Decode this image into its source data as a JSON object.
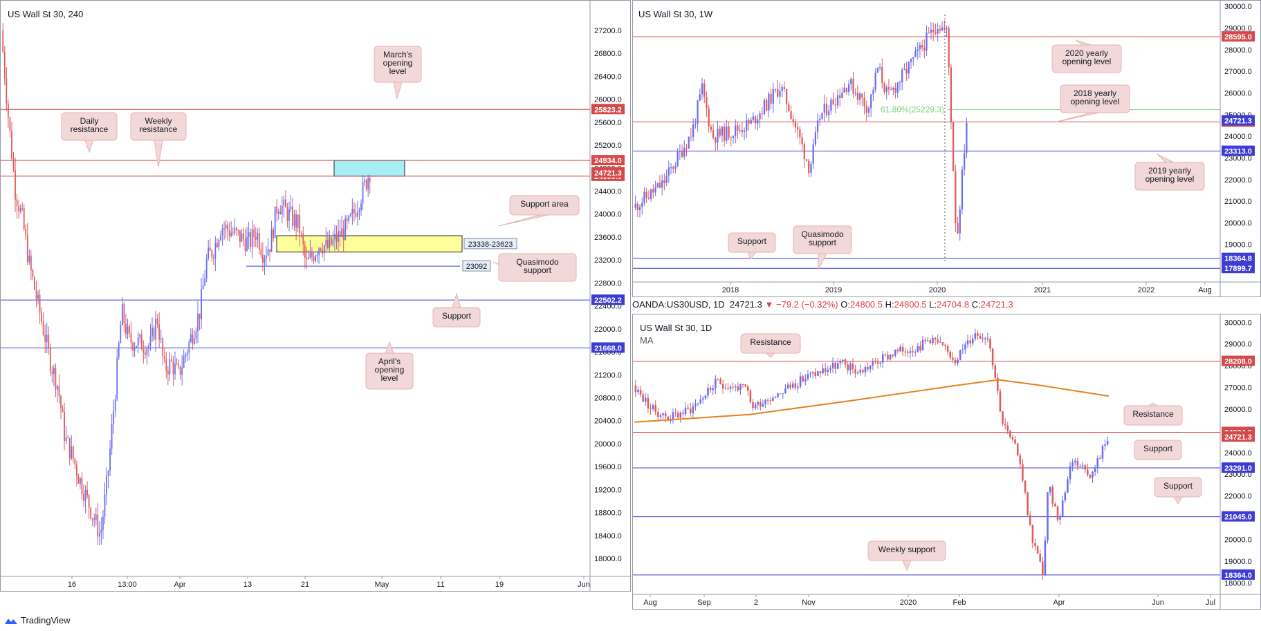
{
  "brand": "TradingView",
  "infobar": {
    "symbol": "OANDA:US30USD, 1D",
    "last": "24721.3",
    "arrow": "▼",
    "change": "−79.2 (−0.32%)",
    "o_label": "O:",
    "o": "24800.5",
    "h_label": "H:",
    "h": "24800.5",
    "l_label": "L:",
    "l": "24704.8",
    "c_label": "C:",
    "c": "24721.3"
  },
  "colors": {
    "bull": "#6b6bf0",
    "bear": "#e05a5a",
    "resistance": "#d44a4a",
    "support": "#3d3dd6",
    "ma": "#e8811a",
    "fib": "#7fd37f",
    "callout": "#f2d8d8"
  },
  "chart_data": [
    {
      "id": "h4",
      "type": "candlestick",
      "title": "US Wall St 30, 240",
      "ylim": [
        17700,
        27500
      ],
      "y_ticks": [
        "27200.0",
        "26800.0",
        "26400.0",
        "26000.0",
        "25600.0",
        "25200.0",
        "24800.0",
        "24400.0",
        "24000.0",
        "23600.0",
        "23200.0",
        "22800.0",
        "22400.0",
        "22000.0",
        "21600.0",
        "21200.0",
        "20800.0",
        "20400.0",
        "20000.0",
        "19600.0",
        "19200.0",
        "18800.0",
        "18400.0",
        "18000.0"
      ],
      "x_ticks": [
        "16",
        "13:00",
        "Apr",
        "13",
        "21",
        "May",
        "11",
        "19",
        "Jun"
      ],
      "price_path": [
        [
          "Mar 9",
          27200
        ],
        [
          "Mar 10",
          25700
        ],
        [
          "Mar 11",
          24400
        ],
        [
          "Mar 12",
          23900
        ],
        [
          "Mar 13",
          23100
        ],
        [
          "Mar 16",
          21400
        ],
        [
          "Mar 17",
          21000
        ],
        [
          "Mar 18",
          20100
        ],
        [
          "Mar 19",
          19800
        ],
        [
          "Mar 20",
          19400
        ],
        [
          "Mar 23",
          18400
        ],
        [
          "Mar 24",
          19400
        ],
        [
          "Mar 25",
          20800
        ],
        [
          "Mar 26",
          22300
        ],
        [
          "Mar 27",
          21800
        ],
        [
          "Mar 30",
          21700
        ],
        [
          "Mar 31",
          22200
        ],
        [
          "Apr 1",
          21300
        ],
        [
          "Apr 2",
          21400
        ],
        [
          "Apr 3",
          21200
        ],
        [
          "Apr 6",
          22300
        ],
        [
          "Apr 7",
          23200
        ],
        [
          "Apr 8",
          23400
        ],
        [
          "Apr 9",
          23800
        ],
        [
          "Apr 13",
          23500
        ],
        [
          "Apr 14",
          23700
        ],
        [
          "Apr 15",
          23300
        ],
        [
          "Apr 16",
          23500
        ],
        [
          "Apr 17",
          24200
        ],
        [
          "Apr 20",
          23800
        ],
        [
          "Apr 21",
          23100
        ],
        [
          "Apr 22",
          23300
        ],
        [
          "Apr 23",
          23500
        ],
        [
          "Apr 24",
          23400
        ],
        [
          "Apr 27",
          23800
        ],
        [
          "Apr 28",
          24100
        ],
        [
          "Apr 29",
          24400
        ],
        [
          "Apr 30",
          24750
        ]
      ],
      "levels": [
        {
          "price": 25823.2,
          "label": "25823.2",
          "kind": "resistance"
        },
        {
          "price": 24934.0,
          "label": "24934.0",
          "kind": "resistance"
        },
        {
          "price": 24660.0,
          "label": "24660.0",
          "kind": "resistance"
        },
        {
          "price": 22502.2,
          "label": "22502.2",
          "kind": "support"
        },
        {
          "price": 21668.0,
          "label": "21668.0",
          "kind": "support"
        }
      ],
      "last_price": {
        "price": 24721.3,
        "label": "24721.3"
      },
      "zones": [
        {
          "label": "23338-23623",
          "low": 23338,
          "high": 23623,
          "color": "#ffff99"
        },
        {
          "label": "",
          "low": 24660,
          "high": 24934,
          "color": "#a6f0f5"
        }
      ],
      "qm_level": {
        "price": 23092,
        "label": "23092"
      },
      "callouts": [
        "March's opening level",
        "Daily resistance",
        "Weekly resistance",
        "Support area",
        "Quasimodo support",
        "Support",
        "April's opening level"
      ]
    },
    {
      "id": "weekly",
      "type": "candlestick",
      "title": "US Wall St 30, 1W",
      "ylim": [
        17300,
        30100
      ],
      "y_ticks": [
        "30000.0",
        "29000.0",
        "28000.0",
        "27000.0",
        "26000.0",
        "25000.0",
        "24000.0",
        "23000.0",
        "22000.0",
        "21000.0",
        "20000.0",
        "19000.0",
        "18000.0"
      ],
      "x_ticks": [
        "2018",
        "2019",
        "2020",
        "2021",
        "2022",
        "Aug"
      ],
      "price_path": [
        [
          "2017-06",
          20700
        ],
        [
          "2017-09",
          21800
        ],
        [
          "2017-12",
          24200
        ],
        [
          "2018-01",
          26200
        ],
        [
          "2018-02",
          24000
        ],
        [
          "2018-04",
          24200
        ],
        [
          "2018-06",
          24600
        ],
        [
          "2018-09",
          26300
        ],
        [
          "2018-10",
          25200
        ],
        [
          "2018-12",
          22500
        ],
        [
          "2019-01",
          24900
        ],
        [
          "2019-04",
          26500
        ],
        [
          "2019-06",
          25300
        ],
        [
          "2019-07",
          27200
        ],
        [
          "2019-08",
          25800
        ],
        [
          "2019-11",
          27800
        ],
        [
          "2020-01",
          29200
        ],
        [
          "2020-02",
          28800
        ],
        [
          "2020-03",
          19000
        ],
        [
          "2020-04",
          24721
        ]
      ],
      "levels": [
        {
          "price": 28595.0,
          "label": "28595.0",
          "kind": "resistance"
        },
        {
          "price": 24660.0,
          "label": "24660.0",
          "kind": "resistance"
        },
        {
          "price": 23313.0,
          "label": "23313.0",
          "kind": "support"
        },
        {
          "price": 18364.8,
          "label": "18364.8",
          "kind": "support"
        },
        {
          "price": 17899.7,
          "label": "17899.7",
          "kind": "support"
        }
      ],
      "last_price": {
        "price": 24721.3,
        "label": "24721.3"
      },
      "fib": {
        "price": 25229.3,
        "label": "61.80%(25229.3)"
      },
      "callouts": [
        "2020 yearly opening level",
        "2018 yearly opening level",
        "2019 yearly opening level",
        "Support",
        "Quasimodo support"
      ]
    },
    {
      "id": "daily",
      "type": "candlestick",
      "title": "US Wall St 30, 1D",
      "indicator": "MA",
      "ylim": [
        17500,
        30200
      ],
      "y_ticks": [
        "30000.0",
        "29000.0",
        "28000.0",
        "27000.0",
        "26000.0",
        "25000.0",
        "24000.0",
        "23000.0",
        "22000.0",
        "21000.0",
        "20000.0",
        "19000.0",
        "18000.0"
      ],
      "x_ticks": [
        "Aug",
        "Sep",
        "2",
        "Nov",
        "2020",
        "Feb",
        "Apr",
        "Jun",
        "Jul"
      ],
      "price_path": [
        [
          "2019-07-25",
          27100
        ],
        [
          "2019-08-05",
          26000
        ],
        [
          "2019-08-15",
          25600
        ],
        [
          "2019-08-28",
          26000
        ],
        [
          "2019-09-12",
          27200
        ],
        [
          "2019-09-30",
          26900
        ],
        [
          "2019-10-03",
          26100
        ],
        [
          "2019-10-20",
          26800
        ],
        [
          "2019-11-05",
          27500
        ],
        [
          "2019-11-25",
          28100
        ],
        [
          "2019-12-05",
          27700
        ],
        [
          "2019-12-26",
          28600
        ],
        [
          "2020-01-10",
          28900
        ],
        [
          "2020-01-17",
          29300
        ],
        [
          "2020-01-31",
          28300
        ],
        [
          "2020-02-12",
          29500
        ],
        [
          "2020-02-20",
          29300
        ],
        [
          "2020-02-28",
          25400
        ],
        [
          "2020-03-09",
          23800
        ],
        [
          "2020-03-16",
          20200
        ],
        [
          "2020-03-23",
          18400
        ],
        [
          "2020-03-26",
          22500
        ],
        [
          "2020-04-01",
          20900
        ],
        [
          "2020-04-09",
          23700
        ],
        [
          "2020-04-21",
          23000
        ],
        [
          "2020-04-30",
          24721
        ]
      ],
      "ma_path": [
        [
          "2019-07-25",
          25400
        ],
        [
          "2019-10-01",
          25750
        ],
        [
          "2019-12-01",
          26400
        ],
        [
          "2020-02-01",
          27100
        ],
        [
          "2020-02-25",
          27350
        ],
        [
          "2020-03-20",
          27100
        ],
        [
          "2020-04-30",
          26600
        ]
      ],
      "levels": [
        {
          "price": 28208.0,
          "label": "28208.0",
          "kind": "resistance"
        },
        {
          "price": 24934.0,
          "label": "24934.0",
          "kind": "resistance"
        },
        {
          "price": 23291.0,
          "label": "23291.0",
          "kind": "support"
        },
        {
          "price": 21045.0,
          "label": "21045.0",
          "kind": "support"
        },
        {
          "price": 18364.0,
          "label": "18364.0",
          "kind": "support"
        }
      ],
      "last_price": {
        "price": 24721.3,
        "label": "24721.3"
      },
      "callouts": [
        "Resistance",
        "Resistance",
        "Support",
        "Support",
        "Weekly support"
      ]
    }
  ]
}
